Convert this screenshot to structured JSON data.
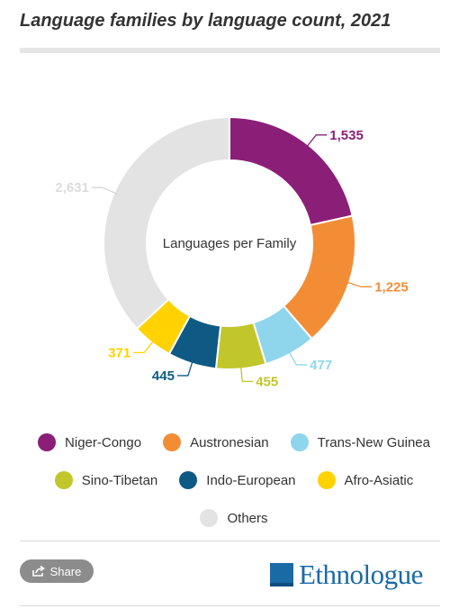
{
  "title": "Language families by language count, 2021",
  "chart_data": {
    "type": "pie",
    "donut": true,
    "center_label": "Languages per Family",
    "series": [
      {
        "name": "Niger-Congo",
        "value": 1535,
        "label": "1,535",
        "color": "#8b1f78"
      },
      {
        "name": "Austronesian",
        "value": 1225,
        "label": "1,225",
        "color": "#f28d36"
      },
      {
        "name": "Trans-New Guinea",
        "value": 477,
        "label": "477",
        "color": "#8fd6ec"
      },
      {
        "name": "Sino-Tibetan",
        "value": 455,
        "label": "455",
        "color": "#c1c62a"
      },
      {
        "name": "Indo-European",
        "value": 445,
        "label": "445",
        "color": "#0e5a84"
      },
      {
        "name": "Afro-Asiatic",
        "value": 371,
        "label": "371",
        "color": "#ffd200"
      },
      {
        "name": "Others",
        "value": 2631,
        "label": "2,631",
        "color": "#e3e3e3"
      }
    ],
    "legend_position": "bottom"
  },
  "legend_rows": [
    [
      "Niger-Congo",
      "Austronesian",
      "Trans-New Guinea"
    ],
    [
      "Sino-Tibetan",
      "Indo-European",
      "Afro-Asiatic"
    ],
    [
      "Others"
    ]
  ],
  "footer": {
    "share_label": "Share",
    "share_icon": "share-icon",
    "logo_text": "Ethnologue",
    "logo_color": "#1a6aa6"
  }
}
